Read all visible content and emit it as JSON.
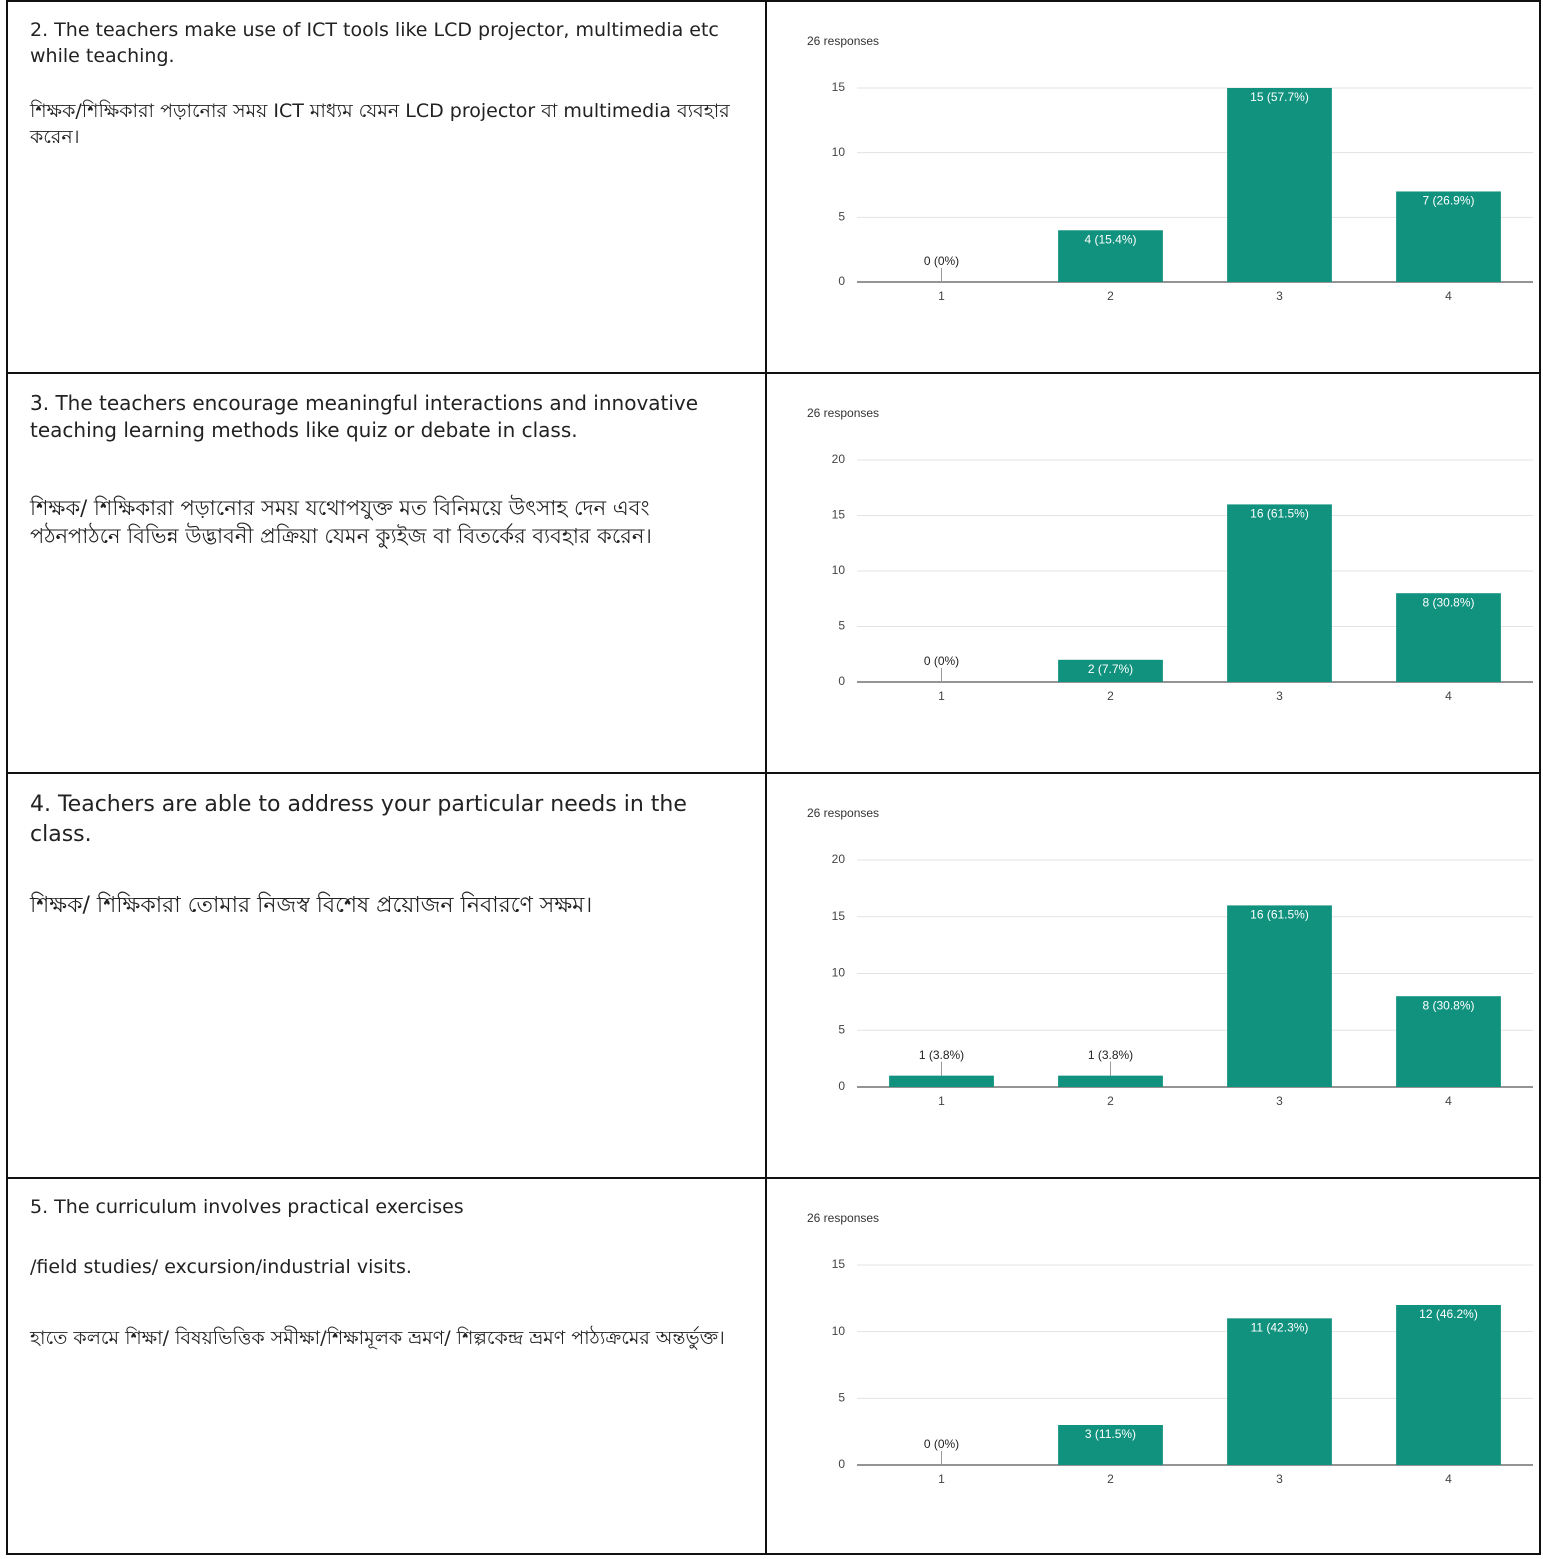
{
  "questions": [
    [
      "2. The teachers make use of ICT tools like LCD projector, multimedia etc while teaching.",
      "শিক্ষক/শিক্ষিকারা পড়ানোর সময় ICT মাধ্যম যেমন LCD projector বা multimedia ব্যবহার করেন।"
    ],
    [
      "3. The teachers encourage meaningful interactions and innovative teaching learning methods like quiz or debate in class.",
      "শিক্ষক/ শিক্ষিকারা পড়ানোর সময় যথোপযুক্ত মত বিনিময়ে উৎসাহ দেন এবং পঠনপাঠনে বিভিন্ন উদ্ভাবনী প্রক্রিয়া যেমন ক্যুইজ বা বিতর্কের ব্যবহার করেন।"
    ],
    [
      "4. Teachers are able to address your particular needs in the class.",
      "শিক্ষক/ শিক্ষিকারা তোমার নিজস্ব বিশেষ প্রয়োজন নিবারণে সক্ষম।"
    ],
    [
      "5. The curriculum involves practical exercises",
      "/field studies/ excursion/industrial visits.",
      "হাতে কলমে শিক্ষা/ বিষয়ভিত্তিক সমীক্ষা/শিক্ষামূলক ভ্রমণ/ শিল্পকেন্দ্র ভ্রমণ পাঠ্যক্রমের অন্তর্ভুক্ত।"
    ]
  ],
  "chart_data": [
    {
      "type": "bar",
      "subtitle": "26 responses",
      "categories": [
        "1",
        "2",
        "3",
        "4"
      ],
      "values": [
        0,
        4,
        15,
        7
      ],
      "value_labels": [
        "0 (0%)",
        "4 (15.4%)",
        "15 (57.7%)",
        "7 (26.9%)"
      ],
      "color": "#10927e",
      "ylim": [
        0,
        15
      ],
      "yticks": [
        0,
        5,
        10,
        15
      ],
      "grid": true
    },
    {
      "type": "bar",
      "subtitle": "26 responses",
      "categories": [
        "1",
        "2",
        "3",
        "4"
      ],
      "values": [
        0,
        2,
        16,
        8
      ],
      "value_labels": [
        "0 (0%)",
        "2 (7.7%)",
        "16 (61.5%)",
        "8 (30.8%)"
      ],
      "color": "#10927e",
      "ylim": [
        0,
        20
      ],
      "yticks": [
        0,
        5,
        10,
        15,
        20
      ],
      "grid": true
    },
    {
      "type": "bar",
      "subtitle": "26 responses",
      "categories": [
        "1",
        "2",
        "3",
        "4"
      ],
      "values": [
        1,
        1,
        16,
        8
      ],
      "value_labels": [
        "1 (3.8%)",
        "1 (3.8%)",
        "16 (61.5%)",
        "8 (30.8%)"
      ],
      "color": "#10927e",
      "ylim": [
        0,
        20
      ],
      "yticks": [
        0,
        5,
        10,
        15,
        20
      ],
      "grid": true
    },
    {
      "type": "bar",
      "subtitle": "26 responses",
      "categories": [
        "1",
        "2",
        "3",
        "4"
      ],
      "values": [
        0,
        3,
        11,
        12
      ],
      "value_labels": [
        "0 (0%)",
        "3 (11.5%)",
        "11 (42.3%)",
        "12 (46.2%)"
      ],
      "color": "#10927e",
      "ylim": [
        0,
        15
      ],
      "yticks": [
        0,
        5,
        10,
        15
      ],
      "grid": true
    }
  ]
}
